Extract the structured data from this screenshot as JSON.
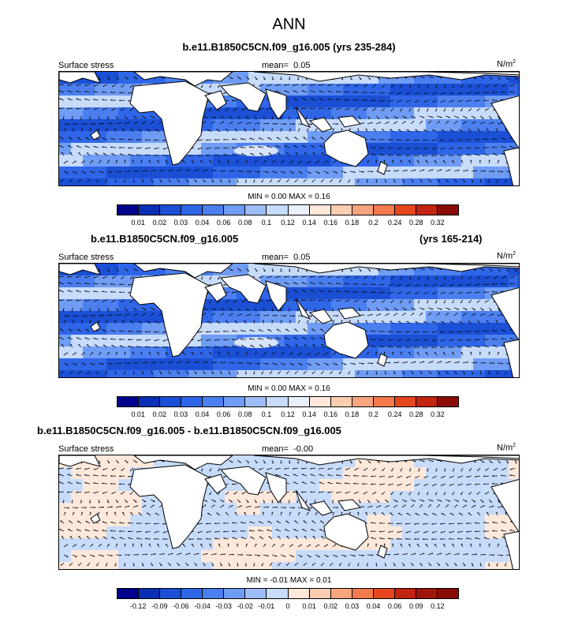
{
  "title": "ANN",
  "panels": [
    {
      "subtitle": "b.e11.B1850C5CN.f09_g16.005 (yrs 235-284)",
      "left_label": "Surface stress",
      "mean_label": "mean=",
      "mean_value": "0.05",
      "units_base": "N/m",
      "units_exp": "2",
      "minmax": "MIN =  0.00 MAX =  0.16",
      "ticks": [
        "0.01",
        "0.02",
        "0.03",
        "0.04",
        "0.06",
        "0.08",
        "0.1",
        "0.12",
        "0.14",
        "0.16",
        "0.18",
        "0.2",
        "0.24",
        "0.28",
        "0.32"
      ],
      "colors": [
        "#00008c",
        "#0a2fb4",
        "#1a4fd6",
        "#2f66e8",
        "#4b7ff0",
        "#6f9cf4",
        "#9dbdf7",
        "#c7dbfa",
        "#e8f0fc",
        "#fde8da",
        "#fbcdb0",
        "#f7a57f",
        "#f27a4c",
        "#e5461e",
        "#c12410",
        "#8a0c06"
      ],
      "field": "positive"
    },
    {
      "subtitle": "b.e11.B1850C5CN.f09_g16.005",
      "subtitle_right": "(yrs 165-214)",
      "left_label": "Surface stress",
      "mean_label": "mean=",
      "mean_value": "0.05",
      "units_base": "N/m",
      "units_exp": "2",
      "minmax": "MIN =  0.00 MAX =  0.16",
      "ticks": [
        "0.01",
        "0.02",
        "0.03",
        "0.04",
        "0.06",
        "0.08",
        "0.1",
        "0.12",
        "0.14",
        "0.16",
        "0.18",
        "0.2",
        "0.24",
        "0.28",
        "0.32"
      ],
      "colors": [
        "#00008c",
        "#0a2fb4",
        "#1a4fd6",
        "#2f66e8",
        "#4b7ff0",
        "#6f9cf4",
        "#9dbdf7",
        "#c7dbfa",
        "#e8f0fc",
        "#fde8da",
        "#fbcdb0",
        "#f7a57f",
        "#f27a4c",
        "#e5461e",
        "#c12410",
        "#8a0c06"
      ],
      "field": "positive"
    },
    {
      "subtitle": "b.e11.B1850C5CN.f09_g16.005 - b.e11.B1850C5CN.f09_g16.005",
      "left_label": "Surface stress",
      "mean_label": "mean=",
      "mean_value": "-0.00",
      "units_base": "N/m",
      "units_exp": "2",
      "minmax": "MIN = -0.01 MAX =  0.01",
      "ticks": [
        "-0.12",
        "-0.09",
        "-0.06",
        "-0.04",
        "-0.03",
        "-0.02",
        "-0.01",
        "0",
        "0.01",
        "0.02",
        "0.03",
        "0.04",
        "0.06",
        "0.09",
        "0.12"
      ],
      "colors": [
        "#00008c",
        "#0a2fb4",
        "#1a4fd6",
        "#2f66e8",
        "#4b7ff0",
        "#6f9cf4",
        "#9dbdf7",
        "#c7dbfa",
        "#fde8da",
        "#fbcdb0",
        "#f7a57f",
        "#f27a4c",
        "#e5461e",
        "#c12410",
        "#a0150a",
        "#8a0c06"
      ],
      "field": "diff"
    }
  ]
}
